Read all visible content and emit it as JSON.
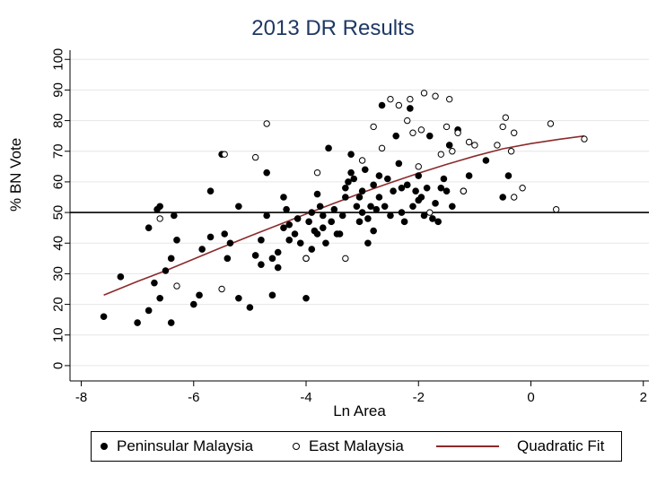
{
  "chart_data": {
    "type": "scatter",
    "title": "2013 DR Results",
    "xlabel": "Ln Area",
    "ylabel": "% BN Vote",
    "xlim": [
      -8.2,
      2.1
    ],
    "ylim": [
      0,
      100
    ],
    "xticks": [
      "-8",
      "-6",
      "-4",
      "-2",
      "0",
      "2"
    ],
    "yticks": [
      "0",
      "10",
      "20",
      "30",
      "40",
      "50",
      "60",
      "70",
      "80",
      "90",
      "100"
    ],
    "reference_line_y": 50,
    "grid": true,
    "legend_position": "bottom",
    "colors": {
      "title": "#1f3864",
      "fit_line": "#8b2a2a",
      "points": "#000000",
      "grid": "#e6e6e6"
    },
    "series": [
      {
        "name": "Peninsular Malaysia",
        "marker": "filled-circle",
        "points": [
          [
            -7.6,
            16
          ],
          [
            -7.3,
            29
          ],
          [
            -7.0,
            14
          ],
          [
            -6.8,
            18
          ],
          [
            -6.7,
            27
          ],
          [
            -6.6,
            22
          ],
          [
            -6.5,
            31
          ],
          [
            -6.4,
            14
          ],
          [
            -6.4,
            35
          ],
          [
            -6.35,
            49
          ],
          [
            -6.3,
            41
          ],
          [
            -6.0,
            20
          ],
          [
            -5.9,
            23
          ],
          [
            -5.85,
            38
          ],
          [
            -5.7,
            42
          ],
          [
            -6.8,
            45
          ],
          [
            -6.65,
            51
          ],
          [
            -6.6,
            52
          ],
          [
            -5.7,
            57
          ],
          [
            -5.5,
            69
          ],
          [
            -5.45,
            43
          ],
          [
            -5.4,
            35
          ],
          [
            -5.35,
            40
          ],
          [
            -5.2,
            52
          ],
          [
            -5.0,
            19
          ],
          [
            -5.2,
            22
          ],
          [
            -4.9,
            36
          ],
          [
            -4.8,
            33
          ],
          [
            -4.8,
            41
          ],
          [
            -4.7,
            49
          ],
          [
            -4.7,
            63
          ],
          [
            -4.6,
            23
          ],
          [
            -4.6,
            35
          ],
          [
            -4.5,
            32
          ],
          [
            -4.5,
            37
          ],
          [
            -4.4,
            45
          ],
          [
            -4.4,
            55
          ],
          [
            -4.35,
            51
          ],
          [
            -4.3,
            41
          ],
          [
            -4.3,
            46
          ],
          [
            -4.2,
            43
          ],
          [
            -4.15,
            48
          ],
          [
            -4.1,
            40
          ],
          [
            -4.0,
            22
          ],
          [
            -4.0,
            35
          ],
          [
            -3.95,
            47
          ],
          [
            -3.9,
            50
          ],
          [
            -3.9,
            38
          ],
          [
            -3.85,
            44
          ],
          [
            -3.8,
            56
          ],
          [
            -3.8,
            43
          ],
          [
            -3.75,
            52
          ],
          [
            -3.7,
            49
          ],
          [
            -3.7,
            45
          ],
          [
            -3.65,
            40
          ],
          [
            -3.6,
            71
          ],
          [
            -3.55,
            47
          ],
          [
            -3.5,
            51
          ],
          [
            -3.45,
            43
          ],
          [
            -3.4,
            43
          ],
          [
            -3.35,
            49
          ],
          [
            -3.3,
            55
          ],
          [
            -3.3,
            58
          ],
          [
            -3.25,
            60
          ],
          [
            -3.2,
            63
          ],
          [
            -3.2,
            69
          ],
          [
            -3.15,
            61
          ],
          [
            -3.1,
            52
          ],
          [
            -3.05,
            47
          ],
          [
            -3.05,
            55
          ],
          [
            -3.0,
            50
          ],
          [
            -3.0,
            57
          ],
          [
            -2.95,
            64
          ],
          [
            -2.9,
            48
          ],
          [
            -2.9,
            40
          ],
          [
            -2.85,
            52
          ],
          [
            -2.8,
            59
          ],
          [
            -2.8,
            44
          ],
          [
            -2.75,
            51
          ],
          [
            -2.7,
            55
          ],
          [
            -2.7,
            62
          ],
          [
            -2.65,
            85
          ],
          [
            -2.6,
            52
          ],
          [
            -2.55,
            61
          ],
          [
            -2.5,
            49
          ],
          [
            -2.45,
            57
          ],
          [
            -2.4,
            75
          ],
          [
            -2.35,
            66
          ],
          [
            -2.3,
            50
          ],
          [
            -2.3,
            58
          ],
          [
            -2.25,
            47
          ],
          [
            -2.2,
            59
          ],
          [
            -2.15,
            84
          ],
          [
            -2.1,
            52
          ],
          [
            -2.05,
            57
          ],
          [
            -2.0,
            62
          ],
          [
            -2.0,
            54
          ],
          [
            -1.95,
            55
          ],
          [
            -1.9,
            49
          ],
          [
            -1.85,
            58
          ],
          [
            -1.8,
            75
          ],
          [
            -1.75,
            48
          ],
          [
            -1.7,
            53
          ],
          [
            -1.65,
            47
          ],
          [
            -1.6,
            58
          ],
          [
            -1.55,
            61
          ],
          [
            -1.5,
            57
          ],
          [
            -1.45,
            72
          ],
          [
            -1.4,
            52
          ],
          [
            -1.3,
            77
          ],
          [
            -1.2,
            57
          ],
          [
            -1.1,
            62
          ],
          [
            -0.8,
            67
          ],
          [
            -0.5,
            55
          ],
          [
            -0.4,
            62
          ]
        ]
      },
      {
        "name": "East Malaysia",
        "marker": "hollow-circle",
        "points": [
          [
            -6.6,
            48
          ],
          [
            -6.3,
            26
          ],
          [
            -5.5,
            25
          ],
          [
            -5.45,
            69
          ],
          [
            -4.9,
            68
          ],
          [
            -4.7,
            79
          ],
          [
            -4.0,
            35
          ],
          [
            -3.8,
            63
          ],
          [
            -3.3,
            35
          ],
          [
            -3.0,
            67
          ],
          [
            -2.8,
            78
          ],
          [
            -2.65,
            71
          ],
          [
            -2.5,
            87
          ],
          [
            -2.35,
            85
          ],
          [
            -2.2,
            80
          ],
          [
            -2.15,
            87
          ],
          [
            -2.1,
            76
          ],
          [
            -2.0,
            65
          ],
          [
            -1.95,
            77
          ],
          [
            -1.9,
            89
          ],
          [
            -1.8,
            50
          ],
          [
            -1.7,
            88
          ],
          [
            -1.6,
            69
          ],
          [
            -1.5,
            78
          ],
          [
            -1.45,
            87
          ],
          [
            -1.4,
            70
          ],
          [
            -1.3,
            76
          ],
          [
            -1.2,
            57
          ],
          [
            -1.1,
            73
          ],
          [
            -1.0,
            72
          ],
          [
            -0.6,
            72
          ],
          [
            -0.5,
            78
          ],
          [
            -0.45,
            81
          ],
          [
            -0.35,
            70
          ],
          [
            -0.3,
            76
          ],
          [
            -0.3,
            55
          ],
          [
            -0.15,
            58
          ],
          [
            0.35,
            79
          ],
          [
            0.45,
            51
          ],
          [
            0.95,
            74
          ]
        ]
      },
      {
        "name": "Quadratic Fit",
        "marker": "line",
        "points": [
          [
            -7.6,
            23
          ],
          [
            -7.0,
            27.5
          ],
          [
            -6.5,
            31
          ],
          [
            -6.0,
            34.8
          ],
          [
            -5.5,
            38.6
          ],
          [
            -5.0,
            42.3
          ],
          [
            -4.5,
            45.9
          ],
          [
            -4.0,
            49.5
          ],
          [
            -3.5,
            53.0
          ],
          [
            -3.0,
            56.5
          ],
          [
            -2.5,
            59.7
          ],
          [
            -2.0,
            62.8
          ],
          [
            -1.5,
            65.7
          ],
          [
            -1.0,
            68.4
          ],
          [
            -0.5,
            70.8
          ],
          [
            0.0,
            72.5
          ],
          [
            0.5,
            73.9
          ],
          [
            0.95,
            75
          ]
        ]
      }
    ]
  }
}
